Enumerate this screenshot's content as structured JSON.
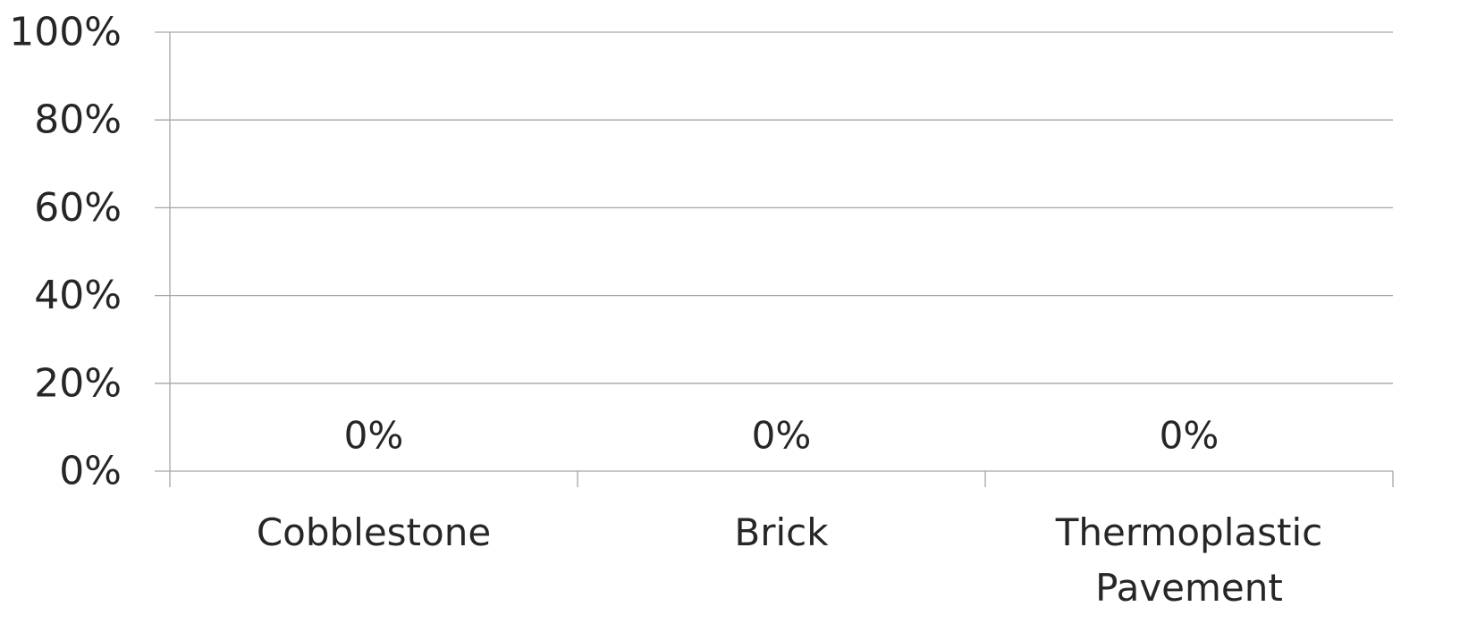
{
  "chart_data": {
    "type": "bar",
    "title": "",
    "xlabel": "",
    "ylabel": "",
    "categories": [
      "Cobblestone",
      "Brick",
      "Thermoplastic Pavement"
    ],
    "category_lines": [
      [
        "Cobblestone"
      ],
      [
        "Brick"
      ],
      [
        "Thermoplastic",
        "Pavement"
      ]
    ],
    "values": [
      0,
      0,
      0
    ],
    "data_labels": [
      "0%",
      "0%",
      "0%"
    ],
    "ylim": [
      0,
      100
    ],
    "yticks": [
      0,
      20,
      40,
      60,
      80,
      100
    ],
    "ytick_labels": [
      "0%",
      "20%",
      "40%",
      "60%",
      "80%",
      "100%"
    ],
    "grid": true,
    "legend": "none",
    "bar_color": "#4472c4",
    "grid_color": "#a6a6a6",
    "text_color": "#262626"
  }
}
